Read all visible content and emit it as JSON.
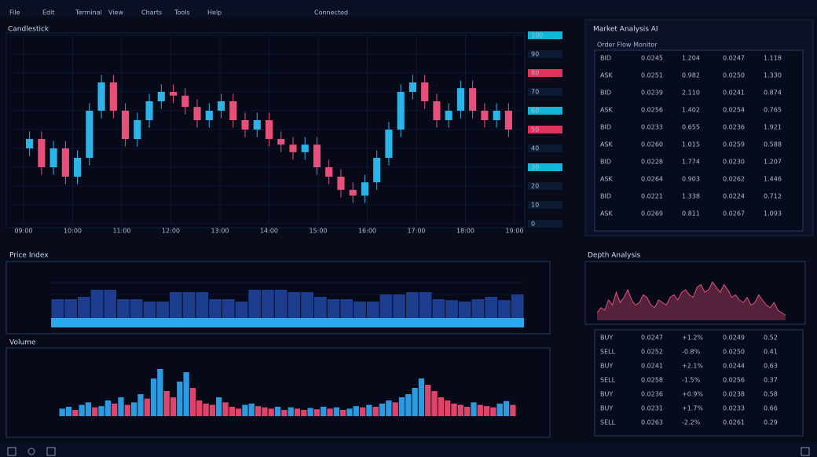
{
  "menu": [
    "File",
    "Edit",
    "Terminal",
    "View",
    "Charts",
    "Tools",
    "Help"
  ],
  "status": "Connected",
  "panels": {
    "main": "Candlestick",
    "index": "Price Index",
    "volume": "Volume",
    "analysis": "Market Analysis AI",
    "analysis_sub": "Order Flow Monitor",
    "depth": "Depth Analysis"
  },
  "chart_data": [
    {
      "type": "candlestick",
      "title": "Candlestick",
      "open": [
        40,
        45,
        30,
        40,
        25,
        35,
        60,
        75,
        60,
        45,
        55,
        65,
        70,
        68,
        62,
        55,
        60,
        65,
        55,
        50,
        55,
        45,
        42,
        38,
        42,
        30,
        25,
        18,
        15,
        22,
        35,
        50,
        70,
        75,
        65,
        55,
        60,
        72,
        60,
        55,
        60
      ],
      "high": [
        49,
        49,
        44,
        44,
        39,
        64,
        79,
        79,
        64,
        59,
        69,
        74,
        74,
        72,
        66,
        64,
        69,
        69,
        59,
        59,
        59,
        49,
        46,
        46,
        46,
        34,
        29,
        22,
        26,
        39,
        54,
        74,
        79,
        79,
        69,
        64,
        76,
        76,
        64,
        64,
        64
      ],
      "low": [
        36,
        26,
        26,
        21,
        21,
        31,
        56,
        56,
        41,
        41,
        51,
        61,
        64,
        58,
        51,
        51,
        56,
        51,
        46,
        46,
        41,
        38,
        34,
        34,
        26,
        21,
        14,
        11,
        11,
        18,
        31,
        46,
        66,
        61,
        51,
        51,
        56,
        56,
        51,
        51,
        46
      ],
      "close": [
        45,
        30,
        40,
        25,
        35,
        60,
        75,
        60,
        45,
        55,
        65,
        70,
        68,
        62,
        55,
        60,
        65,
        55,
        50,
        55,
        45,
        42,
        38,
        42,
        30,
        25,
        18,
        15,
        22,
        35,
        50,
        70,
        75,
        65,
        55,
        60,
        72,
        60,
        55,
        60,
        50
      ],
      "up_color": "#2ab4e8",
      "down_color": "#e8507a",
      "ylim": [
        0,
        100
      ],
      "yticks": [
        0,
        10,
        20,
        30,
        40,
        50,
        60,
        70,
        80,
        90,
        100
      ],
      "tick_colors": [
        "#0c1a33",
        "#0c1a33",
        "#0c1a33",
        "#11b7d8",
        "#0c1a33",
        "#e0325a",
        "#11b7d8",
        "#0c1a33",
        "#e0325a",
        "#0c1a33",
        "#11b7d8"
      ],
      "xticks": [
        "09:00",
        "10:00",
        "11:00",
        "12:00",
        "13:00",
        "14:00",
        "15:00",
        "16:00",
        "17:00",
        "18:00",
        "19:00"
      ],
      "grid": true
    },
    {
      "type": "bar",
      "title": "Price Index",
      "values": [
        40,
        40,
        45,
        60,
        60,
        40,
        40,
        35,
        35,
        55,
        55,
        55,
        40,
        40,
        35,
        60,
        60,
        60,
        55,
        55,
        45,
        40,
        40,
        35,
        35,
        50,
        50,
        55,
        55,
        40,
        38,
        35,
        40,
        45,
        38,
        50
      ],
      "color": "#1d3d8f",
      "ylim": [
        0,
        100
      ],
      "grid": true
    },
    {
      "type": "bar",
      "title": "Volume",
      "values": [
        12,
        15,
        10,
        18,
        22,
        14,
        16,
        25,
        20,
        30,
        18,
        22,
        35,
        28,
        60,
        75,
        40,
        30,
        55,
        70,
        45,
        25,
        20,
        18,
        30,
        22,
        15,
        12,
        18,
        20,
        16,
        14,
        12,
        15,
        10,
        14,
        12,
        10,
        13,
        11,
        15,
        12,
        14,
        10,
        12,
        16,
        14,
        18,
        15,
        20,
        25,
        22,
        30,
        35,
        45,
        60,
        50,
        40,
        30,
        25,
        20,
        18,
        15,
        22,
        18,
        16,
        14,
        20,
        24,
        18
      ],
      "colors": [
        "#2a9be0",
        "#e0446a"
      ],
      "ylim": [
        0,
        100
      ]
    },
    {
      "type": "area",
      "title": "Depth Analysis",
      "values": [
        15,
        25,
        20,
        40,
        30,
        55,
        35,
        45,
        60,
        40,
        30,
        35,
        50,
        45,
        30,
        25,
        40,
        35,
        30,
        45,
        50,
        40,
        55,
        60,
        50,
        45,
        65,
        70,
        55,
        60,
        75,
        65,
        55,
        70,
        60,
        45,
        50,
        40,
        35,
        45,
        30,
        35,
        50,
        40,
        30,
        25,
        35,
        20,
        15,
        10
      ],
      "color": "#e8507a",
      "ylim": [
        0,
        100
      ]
    }
  ],
  "orders": {
    "rows": [
      [
        "BID",
        "0.0245",
        "1.204",
        "0.0247",
        "1.118"
      ],
      [
        "ASK",
        "0.0251",
        "0.982",
        "0.0250",
        "1.330"
      ],
      [
        "BID",
        "0.0239",
        "2.110",
        "0.0241",
        "0.874"
      ],
      [
        "ASK",
        "0.0256",
        "1.402",
        "0.0254",
        "0.765"
      ],
      [
        "BID",
        "0.0233",
        "0.655",
        "0.0236",
        "1.921"
      ],
      [
        "ASK",
        "0.0260",
        "1.015",
        "0.0259",
        "0.588"
      ],
      [
        "BID",
        "0.0228",
        "1.774",
        "0.0230",
        "1.207"
      ],
      [
        "ASK",
        "0.0264",
        "0.903",
        "0.0262",
        "1.446"
      ],
      [
        "BID",
        "0.0221",
        "1.338",
        "0.0224",
        "0.712"
      ],
      [
        "ASK",
        "0.0269",
        "0.811",
        "0.0267",
        "1.093"
      ]
    ],
    "colors": [
      "#8fb4d8",
      "#e8507a",
      "#cfe0f0",
      "#2ab4e8",
      "#cfe0f0"
    ]
  },
  "signals": {
    "rows": [
      [
        "BUY",
        "0.0247",
        "+1.2%",
        "0.0249",
        "0.52"
      ],
      [
        "SELL",
        "0.0252",
        "-0.8%",
        "0.0250",
        "0.41"
      ],
      [
        "BUY",
        "0.0241",
        "+2.1%",
        "0.0244",
        "0.63"
      ],
      [
        "SELL",
        "0.0258",
        "-1.5%",
        "0.0256",
        "0.37"
      ],
      [
        "BUY",
        "0.0236",
        "+0.9%",
        "0.0238",
        "0.58"
      ],
      [
        "BUY",
        "0.0231",
        "+1.7%",
        "0.0233",
        "0.66"
      ],
      [
        "SELL",
        "0.0263",
        "-2.2%",
        "0.0261",
        "0.29"
      ]
    ],
    "colors": [
      "#cfe0f0",
      "#2ab4e8",
      "#e8507a",
      "#cfe0f0",
      "#8fb4d8"
    ]
  }
}
